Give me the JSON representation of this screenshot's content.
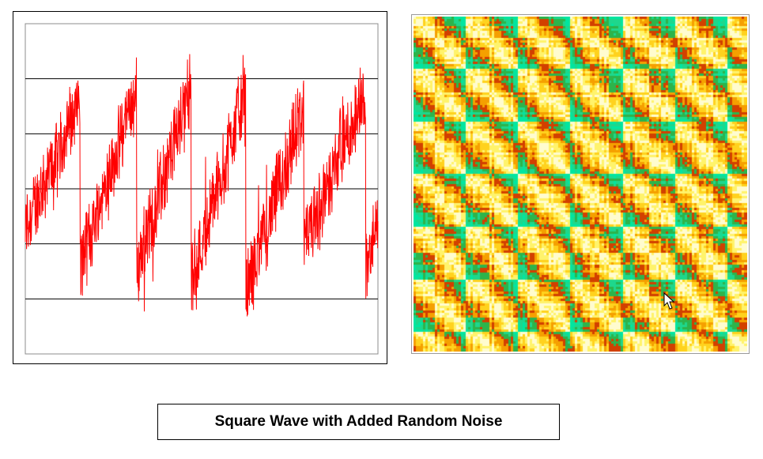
{
  "title": "Square Wave with Added Random Noise",
  "colors": {
    "signal": "#ff0000",
    "gridline": "#000000",
    "recurrence_palette": [
      "#fffccf",
      "#fff36b",
      "#ffd21e",
      "#f5a000",
      "#d24000",
      "#2db44b",
      "#1ed78c",
      "#00e6a0"
    ]
  },
  "icons": {
    "pointer": "mouse-pointer-icon"
  },
  "chart_data": [
    {
      "type": "line",
      "title": "",
      "xlabel": "",
      "ylabel": "",
      "grid": "horizontal lines only",
      "legend": "none",
      "ylim": [
        0,
        6
      ],
      "xlim": [
        0,
        1000
      ],
      "series": [
        {
          "description_free": true,
          "cycles": [
            {
              "start_x": 0,
              "end_x": 155,
              "start_y": 2.3,
              "end_y": 4.6
            },
            {
              "start_x": 155,
              "end_x": 315,
              "start_y": 1.6,
              "end_y": 4.8
            },
            {
              "start_x": 315,
              "end_x": 470,
              "start_y": 1.5,
              "end_y": 4.9
            },
            {
              "start_x": 470,
              "end_x": 625,
              "start_y": 1.3,
              "end_y": 4.9
            },
            {
              "start_x": 625,
              "end_x": 790,
              "start_y": 1.1,
              "end_y": 4.5
            },
            {
              "start_x": 790,
              "end_x": 965,
              "start_y": 1.9,
              "end_y": 4.8
            },
            {
              "start_x": 965,
              "end_x": 1000,
              "start_y": 1.5,
              "end_y": 2.3
            }
          ]
        }
      ],
      "gridlines_y": [
        1,
        2,
        3,
        4,
        5
      ]
    },
    {
      "type": "heatmap",
      "title": "",
      "xlabel": "",
      "ylabel": "",
      "legend": "none",
      "period_blocks": 6.4
    }
  ]
}
